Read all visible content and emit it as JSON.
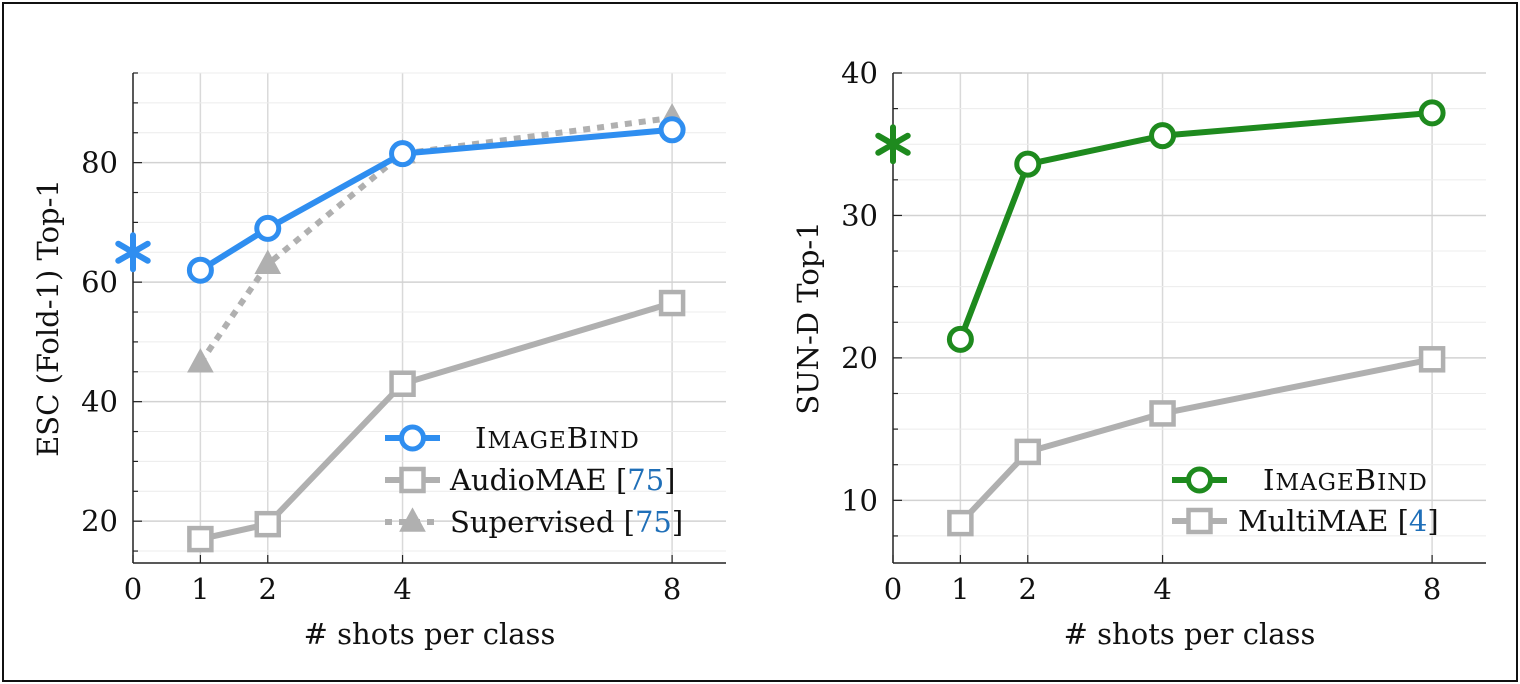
{
  "chart_data": [
    {
      "type": "line",
      "xlabel": "# shots per class",
      "ylabel": "ESC (Fold-1) Top-1",
      "x_ticks": [
        0,
        1,
        2,
        4,
        8
      ],
      "y_ticks": [
        20,
        40,
        60,
        80
      ],
      "xlim": [
        0,
        8.8
      ],
      "ylim": [
        13,
        95
      ],
      "grid": true,
      "legend_position": "bottom-right",
      "zero_shot_star": {
        "x": 0,
        "y": 65,
        "color": "#2f8ef0"
      },
      "series": [
        {
          "name": "IMAGEBIND",
          "legend_first": "I",
          "legend_rest": "MAGE",
          "legend_first2": "B",
          "legend_rest2": "IND",
          "color": "#2f8ef0",
          "style": "solid",
          "marker": "circle",
          "x": [
            1,
            2,
            4,
            8
          ],
          "y": [
            62,
            69,
            81.5,
            85.5
          ]
        },
        {
          "name": "AudioMAE",
          "legend_label": "AudioMAE [",
          "legend_ref": "75",
          "legend_close": "]",
          "color": "#b0b0b0",
          "style": "solid",
          "marker": "square",
          "x": [
            1,
            2,
            4,
            8
          ],
          "y": [
            17,
            19.5,
            43,
            56.5
          ]
        },
        {
          "name": "Supervised",
          "legend_label": "Supervised [",
          "legend_ref": "75",
          "legend_close": "]",
          "color": "#b0b0b0",
          "style": "dotted",
          "marker": "triangle",
          "x": [
            1,
            2,
            4,
            8
          ],
          "y": [
            46.5,
            63,
            81.5,
            87.5
          ]
        }
      ]
    },
    {
      "type": "line",
      "xlabel": "# shots per class",
      "ylabel": "SUN-D Top-1",
      "x_ticks": [
        0,
        1,
        2,
        4,
        8
      ],
      "y_ticks": [
        10,
        20,
        30,
        40
      ],
      "xlim": [
        0,
        8.8
      ],
      "ylim": [
        5.6,
        40
      ],
      "grid": true,
      "legend_position": "bottom-right",
      "zero_shot_star": {
        "x": 0,
        "y": 35,
        "color": "#1e8a1e"
      },
      "series": [
        {
          "name": "IMAGEBIND",
          "legend_first": "I",
          "legend_rest": "MAGE",
          "legend_first2": "B",
          "legend_rest2": "IND",
          "color": "#1e8a1e",
          "style": "solid",
          "marker": "circle",
          "x": [
            1,
            2,
            4,
            8
          ],
          "y": [
            21.3,
            33.6,
            35.6,
            37.2
          ]
        },
        {
          "name": "MultiMAE",
          "legend_label": "MultiMAE [",
          "legend_ref": "4",
          "legend_close": "]",
          "color": "#b0b0b0",
          "style": "solid",
          "marker": "square",
          "x": [
            1,
            2,
            4,
            8
          ],
          "y": [
            8.4,
            13.4,
            16.1,
            19.9
          ]
        }
      ]
    }
  ]
}
